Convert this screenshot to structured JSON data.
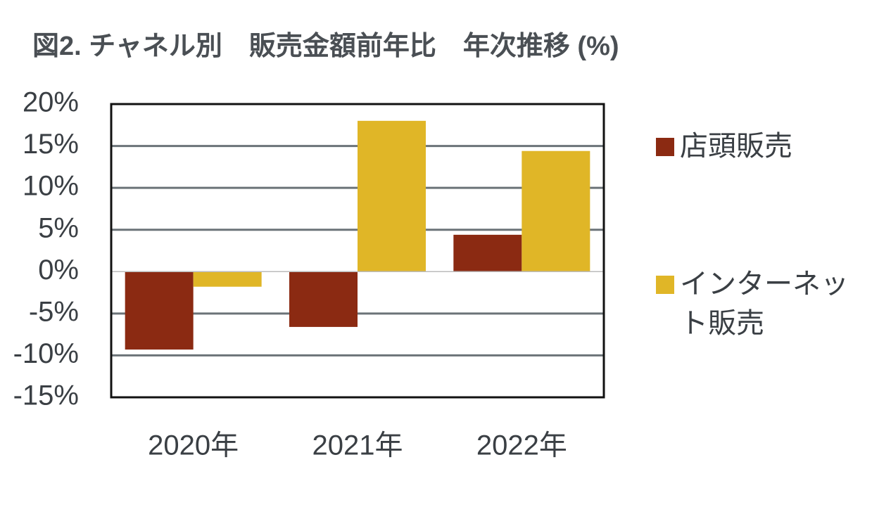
{
  "chart_data": {
    "type": "bar",
    "title": "図2. チャネル別　販売金額前年比　年次推移 (%)",
    "categories": [
      "2020年",
      "2021年",
      "2022年"
    ],
    "series": [
      {
        "name": "店頭販売",
        "color": "#8b2a12",
        "values": [
          -9.3,
          -6.6,
          4.4
        ]
      },
      {
        "name": "インターネット販売",
        "color": "#e0b627",
        "values": [
          -1.8,
          18.0,
          14.4
        ]
      }
    ],
    "ylim": [
      -15,
      20
    ],
    "yticks": [
      {
        "value": -15,
        "label": "-15%"
      },
      {
        "value": -10,
        "label": "-10%"
      },
      {
        "value": -5,
        "label": "-5%"
      },
      {
        "value": 0,
        "label": "0%"
      },
      {
        "value": 5,
        "label": "5%"
      },
      {
        "value": 10,
        "label": "10%"
      },
      {
        "value": 15,
        "label": "15%"
      },
      {
        "value": 20,
        "label": "20%"
      }
    ],
    "grid": true,
    "legend": "right"
  }
}
